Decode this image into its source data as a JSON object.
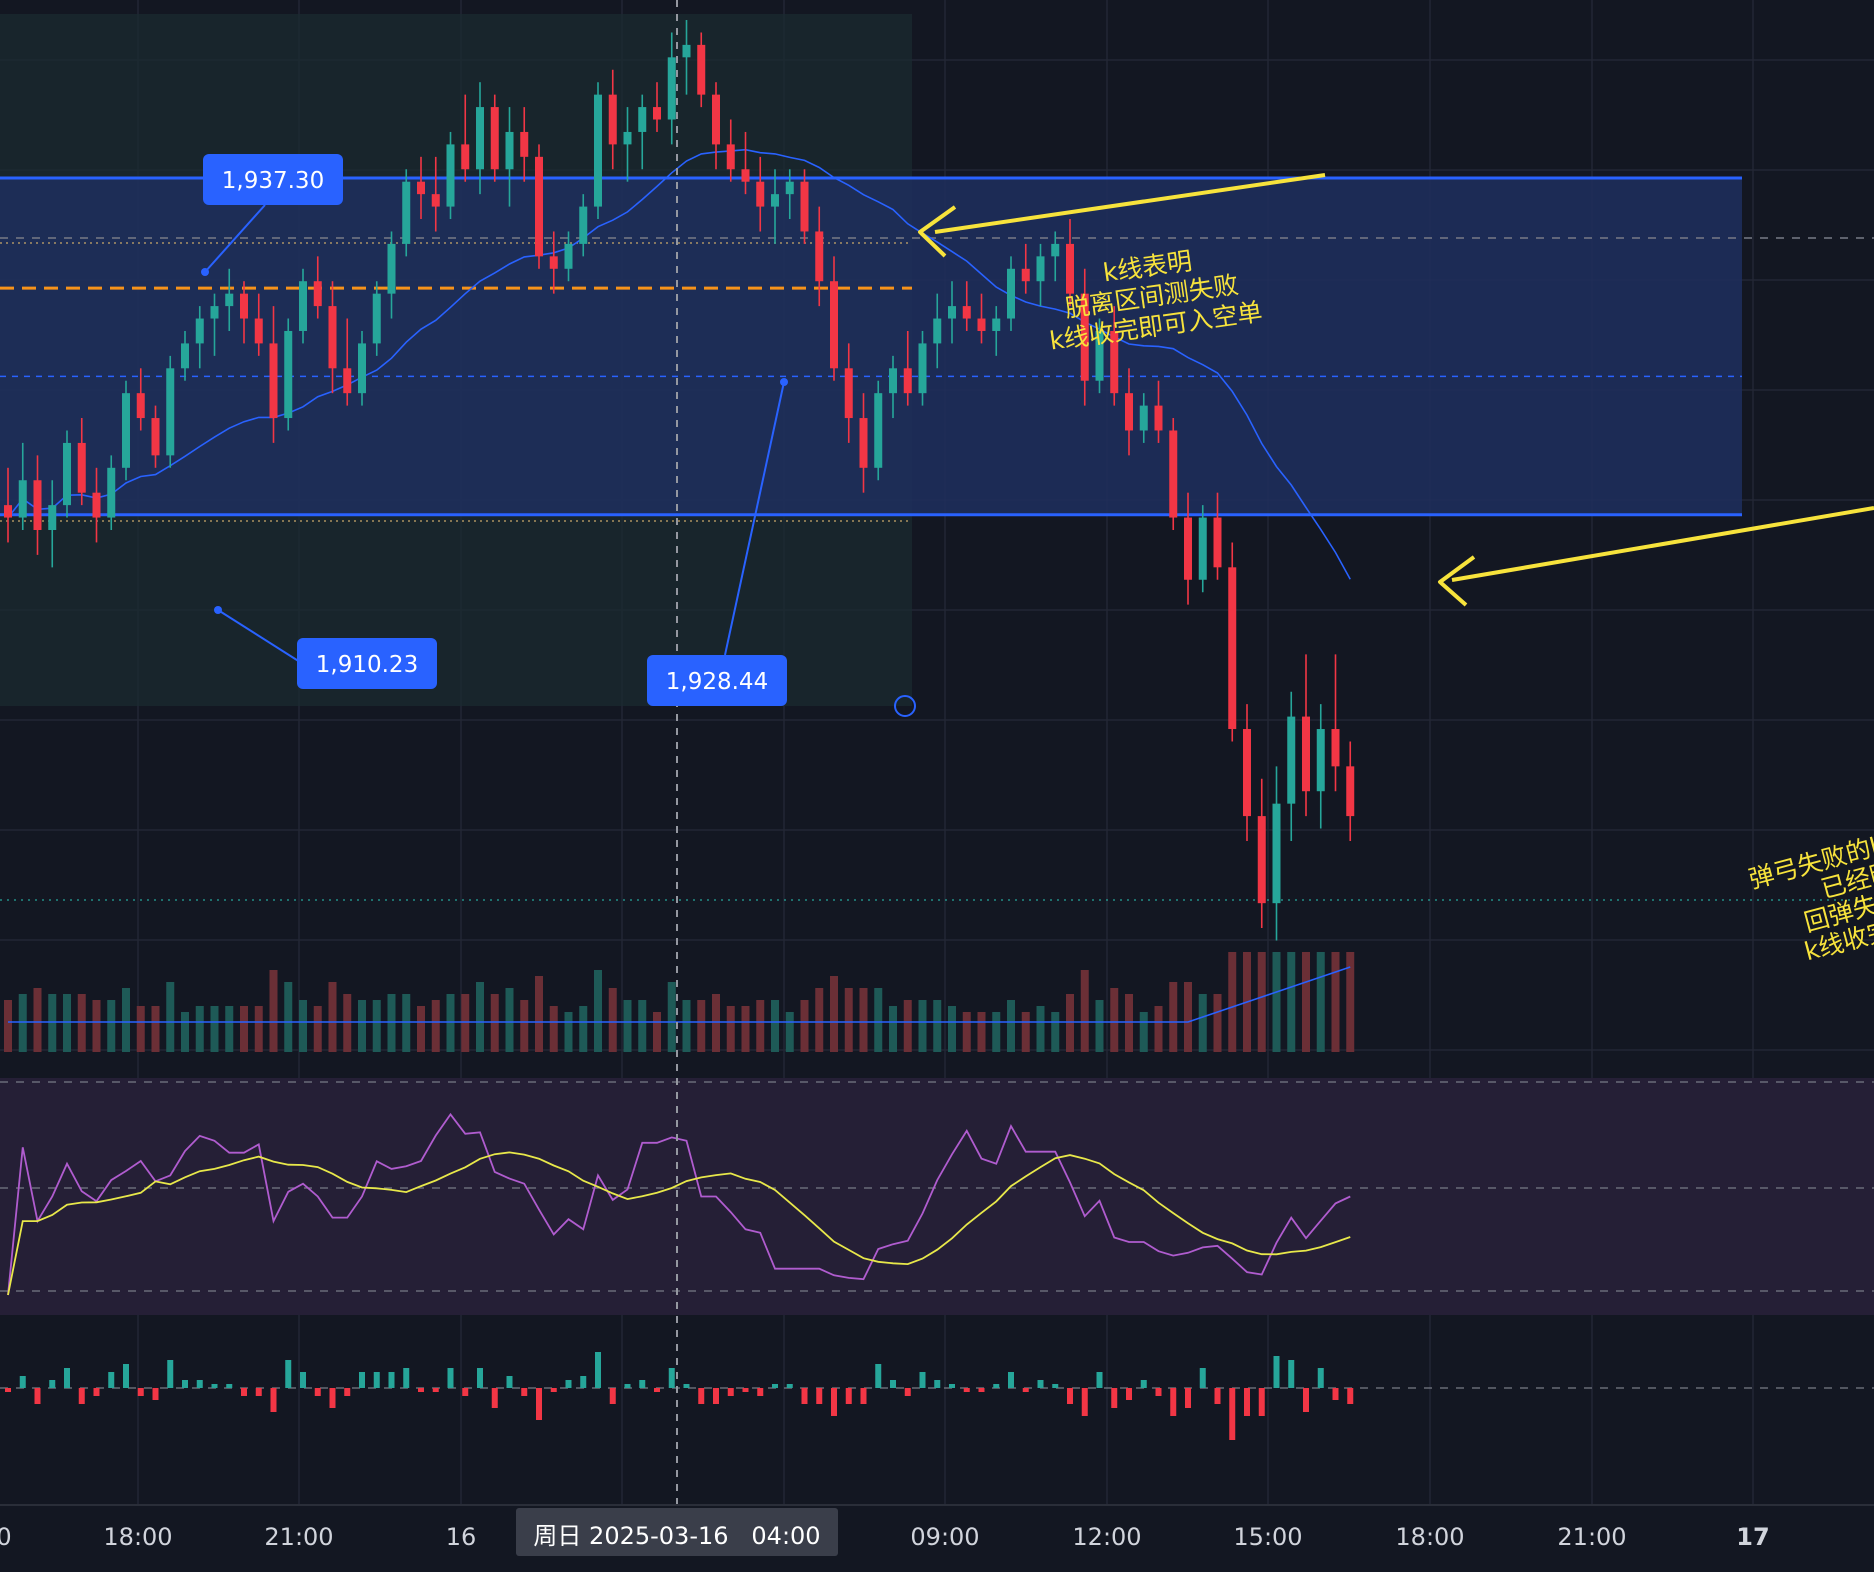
{
  "theme": {
    "background": "#131722",
    "grid": "#232734",
    "up": "#26a69a",
    "down": "#f23645",
    "up_volume": "#1e5a57",
    "down_volume": "#6b2f36",
    "range_fill": "#1e2f5e",
    "range_line": "#2962ff",
    "label_bg": "#2962ff",
    "annotation": "#f7e33c",
    "midline_orange": "#f7931a",
    "rsi_line": "#b05ccf",
    "rsi_ma": "#e8e84a",
    "rsi_fill": "#251f36",
    "macd_up": "#26a69a",
    "macd_down": "#f23645"
  },
  "price_labels": {
    "upper": "1,937.30",
    "lower": "1,910.23",
    "middle": "1,928.44"
  },
  "annotations": {
    "top": [
      "k线表明",
      "脱离区间测失败",
      "k线收完即可入空单"
    ],
    "right": [
      "弹弓失败的k线，此时",
      "已经明确了",
      "回弹失败的信号",
      "k线收完即可跟空"
    ]
  },
  "time_axis": {
    "ticks": [
      "0",
      "18:00",
      "21:00",
      "16",
      "09:00",
      "12:00",
      "15:00",
      "18:00",
      "21:00",
      "17"
    ],
    "crosshair_label": "周日 2025-03-16   04:00"
  },
  "chart_data": {
    "type": "candlestick",
    "price_range": [
      1868,
      1950
    ],
    "range_box": {
      "upper": 1937.3,
      "lower": 1910.23,
      "mid": 1928.44
    },
    "candles": [
      [
        1911,
        1914,
        1908,
        1910
      ],
      [
        1910,
        1916,
        1909,
        1913
      ],
      [
        1913,
        1915,
        1907,
        1909
      ],
      [
        1909,
        1913,
        1906,
        1911
      ],
      [
        1911,
        1917,
        1910,
        1916
      ],
      [
        1916,
        1918,
        1911,
        1912
      ],
      [
        1912,
        1914,
        1908,
        1910
      ],
      [
        1910,
        1915,
        1909,
        1914
      ],
      [
        1914,
        1921,
        1913,
        1920
      ],
      [
        1920,
        1922,
        1917,
        1918
      ],
      [
        1918,
        1919,
        1914,
        1915
      ],
      [
        1915,
        1923,
        1914,
        1922
      ],
      [
        1922,
        1925,
        1921,
        1924
      ],
      [
        1924,
        1927,
        1922,
        1926
      ],
      [
        1926,
        1928,
        1923,
        1927
      ],
      [
        1927,
        1930,
        1925,
        1928
      ],
      [
        1928,
        1929,
        1924,
        1926
      ],
      [
        1926,
        1928,
        1923,
        1924
      ],
      [
        1924,
        1927,
        1916,
        1918
      ],
      [
        1918,
        1926,
        1917,
        1925
      ],
      [
        1925,
        1930,
        1924,
        1929
      ],
      [
        1929,
        1931,
        1926,
        1927
      ],
      [
        1927,
        1929,
        1920,
        1922
      ],
      [
        1922,
        1926,
        1919,
        1920
      ],
      [
        1920,
        1925,
        1919,
        1924
      ],
      [
        1924,
        1929,
        1923,
        1928
      ],
      [
        1928,
        1933,
        1926,
        1932
      ],
      [
        1932,
        1938,
        1931,
        1937
      ],
      [
        1937,
        1939,
        1934,
        1936
      ],
      [
        1936,
        1939,
        1933,
        1935
      ],
      [
        1935,
        1941,
        1934,
        1940
      ],
      [
        1940,
        1944,
        1937,
        1938
      ],
      [
        1938,
        1945,
        1936,
        1943
      ],
      [
        1943,
        1944,
        1937,
        1938
      ],
      [
        1938,
        1943,
        1935,
        1941
      ],
      [
        1941,
        1943,
        1937,
        1939
      ],
      [
        1939,
        1940,
        1930,
        1931
      ],
      [
        1931,
        1933,
        1928,
        1930
      ],
      [
        1930,
        1933,
        1929,
        1932
      ],
      [
        1932,
        1936,
        1931,
        1935
      ],
      [
        1935,
        1945,
        1934,
        1944
      ],
      [
        1944,
        1946,
        1938,
        1940
      ],
      [
        1940,
        1943,
        1937,
        1941
      ],
      [
        1941,
        1944,
        1938,
        1943
      ],
      [
        1943,
        1945,
        1941,
        1942
      ],
      [
        1942,
        1949,
        1940,
        1947
      ],
      [
        1947,
        1950,
        1944,
        1948
      ],
      [
        1948,
        1949,
        1943,
        1944
      ],
      [
        1944,
        1945,
        1938,
        1940
      ],
      [
        1940,
        1942,
        1937,
        1938
      ],
      [
        1938,
        1941,
        1936,
        1937
      ],
      [
        1937,
        1939,
        1933,
        1935
      ],
      [
        1935,
        1938,
        1932,
        1936
      ],
      [
        1936,
        1938,
        1934,
        1937
      ],
      [
        1937,
        1938,
        1932,
        1933
      ],
      [
        1933,
        1935,
        1927,
        1929
      ],
      [
        1929,
        1931,
        1921,
        1922
      ],
      [
        1922,
        1924,
        1916,
        1918
      ],
      [
        1918,
        1920,
        1912,
        1914
      ],
      [
        1914,
        1921,
        1913,
        1920
      ],
      [
        1920,
        1923,
        1918,
        1922
      ],
      [
        1922,
        1925,
        1919,
        1920
      ],
      [
        1920,
        1925,
        1919,
        1924
      ],
      [
        1924,
        1928,
        1922,
        1926
      ],
      [
        1926,
        1929,
        1924,
        1927
      ],
      [
        1927,
        1929,
        1925,
        1926
      ],
      [
        1926,
        1928,
        1924,
        1925
      ],
      [
        1925,
        1927,
        1923,
        1926
      ],
      [
        1926,
        1931,
        1925,
        1930
      ],
      [
        1930,
        1932,
        1928,
        1929
      ],
      [
        1929,
        1932,
        1927,
        1931
      ],
      [
        1931,
        1933,
        1929,
        1932
      ],
      [
        1932,
        1934,
        1927,
        1928
      ],
      [
        1928,
        1930,
        1919,
        1921
      ],
      [
        1921,
        1926,
        1920,
        1925
      ],
      [
        1925,
        1927,
        1919,
        1920
      ],
      [
        1920,
        1922,
        1915,
        1917
      ],
      [
        1917,
        1920,
        1916,
        1919
      ],
      [
        1919,
        1921,
        1916,
        1917
      ],
      [
        1917,
        1918,
        1909,
        1910
      ],
      [
        1910,
        1912,
        1903,
        1905
      ],
      [
        1905,
        1911,
        1904,
        1910
      ],
      [
        1910,
        1912,
        1905,
        1906
      ],
      [
        1906,
        1908,
        1892,
        1893
      ],
      [
        1893,
        1895,
        1884,
        1886
      ],
      [
        1886,
        1889,
        1877,
        1879
      ],
      [
        1879,
        1890,
        1876,
        1887
      ],
      [
        1887,
        1896,
        1884,
        1894
      ],
      [
        1894,
        1899,
        1886,
        1888
      ],
      [
        1888,
        1895,
        1885,
        1893
      ],
      [
        1893,
        1899,
        1888,
        1890
      ],
      [
        1890,
        1892,
        1884,
        1886
      ]
    ]
  }
}
